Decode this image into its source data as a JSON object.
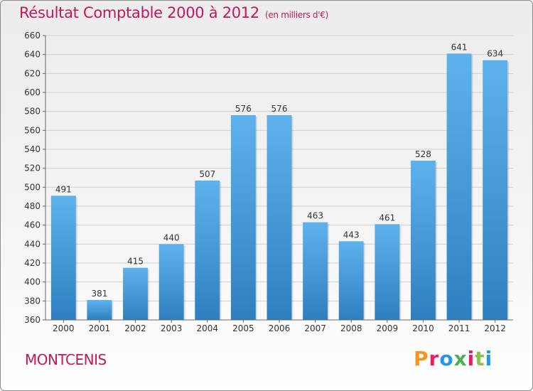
{
  "header": {
    "title": "Résultat Comptable 2000 à 2012",
    "unit": "(en milliers d'€)"
  },
  "footer": {
    "commune": "MONTCENIS",
    "brand": "Proxiti",
    "brand_colors": [
      "#f7941d",
      "#e91e63",
      "#2196f3",
      "#4caf50",
      "#e91e63",
      "#8bc34a",
      "#2196f3"
    ]
  },
  "colors": {
    "bar_top": "#5eb2ec",
    "bar_bottom": "#2f7fc0",
    "title": "#c2185b",
    "grid": "#d0d0d0",
    "axis_text": "#333333"
  },
  "chart_data": {
    "type": "bar",
    "categories": [
      "2000",
      "2001",
      "2002",
      "2003",
      "2004",
      "2005",
      "2006",
      "2007",
      "2008",
      "2009",
      "2010",
      "2011",
      "2012"
    ],
    "values": [
      491,
      381,
      415,
      440,
      507,
      576,
      576,
      463,
      443,
      461,
      528,
      641,
      634
    ],
    "ylim": [
      360,
      660
    ],
    "yticks": [
      360,
      380,
      400,
      420,
      440,
      460,
      480,
      500,
      520,
      540,
      560,
      580,
      600,
      620,
      640,
      660
    ],
    "grid": true,
    "data_labels": true
  }
}
